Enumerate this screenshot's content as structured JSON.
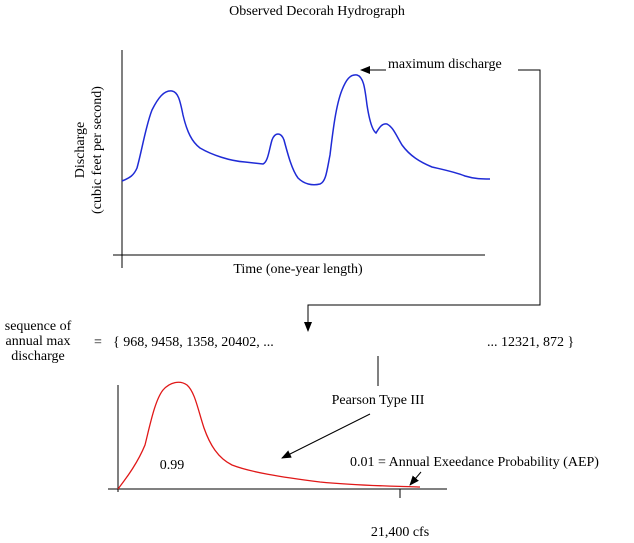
{
  "title": "Observed Decorah Hydrograph",
  "hydrograph": {
    "y_label": [
      "Discharge",
      "(cubic feet per second)"
    ],
    "x_label": "Time (one-year length)",
    "max_annotation": "maximum discharge"
  },
  "sequence": {
    "label": [
      "sequence of",
      "annual max",
      "discharge"
    ],
    "equals": "=",
    "start": "{ 968, 9458, 1358, 20402, ...",
    "end": "... 12321, 872 }"
  },
  "distribution": {
    "name": "Pearson Type III",
    "area_label": "0.99",
    "aep_label": "0.01 = Annual Exeedance Probability (AEP)",
    "x_tick": "21,400 cfs"
  }
}
